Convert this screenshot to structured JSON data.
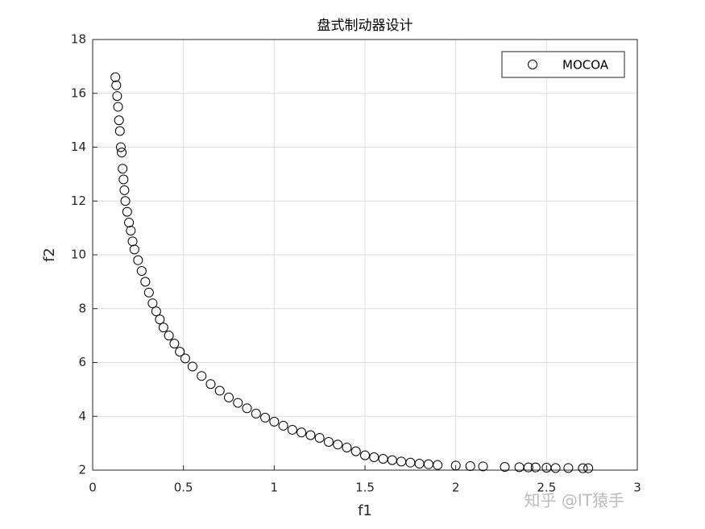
{
  "chart_data": {
    "type": "scatter",
    "title": "盘式制动器设计",
    "xlabel": "f1",
    "ylabel": "f2",
    "series": [
      {
        "name": "MOCOA",
        "color": "#000000",
        "x": [
          0.125,
          0.13,
          0.135,
          0.14,
          0.145,
          0.15,
          0.155,
          0.16,
          0.165,
          0.17,
          0.175,
          0.18,
          0.19,
          0.2,
          0.21,
          0.22,
          0.23,
          0.25,
          0.27,
          0.29,
          0.31,
          0.33,
          0.35,
          0.37,
          0.39,
          0.42,
          0.45,
          0.48,
          0.51,
          0.55,
          0.6,
          0.65,
          0.7,
          0.75,
          0.8,
          0.85,
          0.9,
          0.95,
          1.0,
          1.05,
          1.1,
          1.15,
          1.2,
          1.25,
          1.3,
          1.35,
          1.4,
          1.45,
          1.5,
          1.55,
          1.6,
          1.65,
          1.7,
          1.75,
          1.8,
          1.85,
          1.9,
          2.0,
          2.08,
          2.15,
          2.27,
          2.35,
          2.4,
          2.44,
          2.5,
          2.55,
          2.62,
          2.7,
          2.73
        ],
        "y": [
          16.6,
          16.3,
          15.9,
          15.5,
          15.0,
          14.6,
          14.0,
          13.8,
          13.2,
          12.8,
          12.4,
          12.0,
          11.6,
          11.2,
          10.9,
          10.5,
          10.2,
          9.8,
          9.4,
          9.0,
          8.6,
          8.2,
          7.9,
          7.6,
          7.3,
          7.0,
          6.7,
          6.4,
          6.15,
          5.85,
          5.5,
          5.2,
          4.95,
          4.7,
          4.5,
          4.3,
          4.1,
          3.95,
          3.8,
          3.65,
          3.5,
          3.4,
          3.3,
          3.2,
          3.05,
          2.95,
          2.84,
          2.7,
          2.55,
          2.48,
          2.42,
          2.37,
          2.32,
          2.28,
          2.24,
          2.22,
          2.19,
          2.17,
          2.15,
          2.14,
          2.12,
          2.11,
          2.1,
          2.1,
          2.09,
          2.08,
          2.08,
          2.07,
          2.07
        ]
      }
    ],
    "xlim": [
      0,
      3
    ],
    "xticks": [
      0,
      0.5,
      1,
      1.5,
      2,
      2.5,
      3
    ],
    "ylim": [
      2,
      18
    ],
    "yticks": [
      2,
      4,
      6,
      8,
      10,
      12,
      14,
      16,
      18
    ],
    "grid": true,
    "legend": "upper right"
  },
  "watermark": "知乎 @IT猿手"
}
